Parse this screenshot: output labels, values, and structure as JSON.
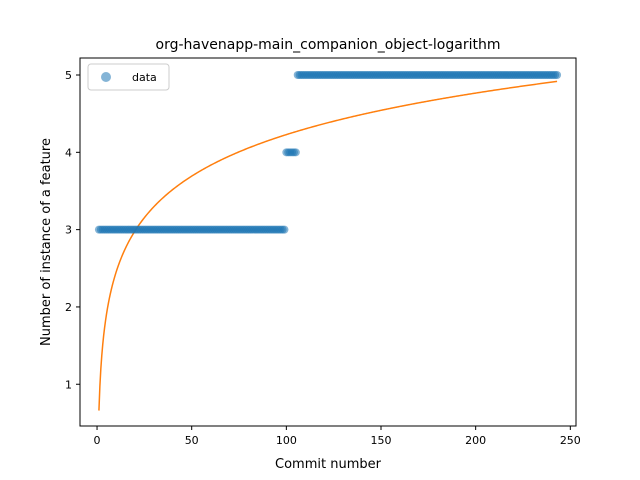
{
  "chart_data": {
    "type": "scatter",
    "title": "org-havenapp-main_companion_object-logarithm",
    "xlabel": "Commit number",
    "ylabel": "Number of instance of a feature",
    "xlim": [
      -9,
      253
    ],
    "ylim": [
      0.46,
      5.22
    ],
    "xticks": [
      0,
      50,
      100,
      150,
      200,
      250
    ],
    "yticks": [
      1,
      2,
      3,
      4,
      5
    ],
    "grid": false,
    "legend": {
      "placement": "top-left",
      "entries": [
        "data"
      ]
    },
    "colors": {
      "data": "#1f77b4",
      "fit": "#ff7f0e"
    },
    "series": [
      {
        "name": "data",
        "kind": "scatter",
        "segments": [
          {
            "x_start": 1,
            "x_end": 99,
            "y": 3
          },
          {
            "x_start": 100,
            "x_end": 105,
            "y": 4
          },
          {
            "x_start": 106,
            "x_end": 243,
            "y": 5
          }
        ]
      },
      {
        "kind": "line",
        "model": "a + b*ln(x)",
        "a": 0.66,
        "b": 0.775,
        "x_range": [
          1,
          243
        ]
      }
    ]
  }
}
